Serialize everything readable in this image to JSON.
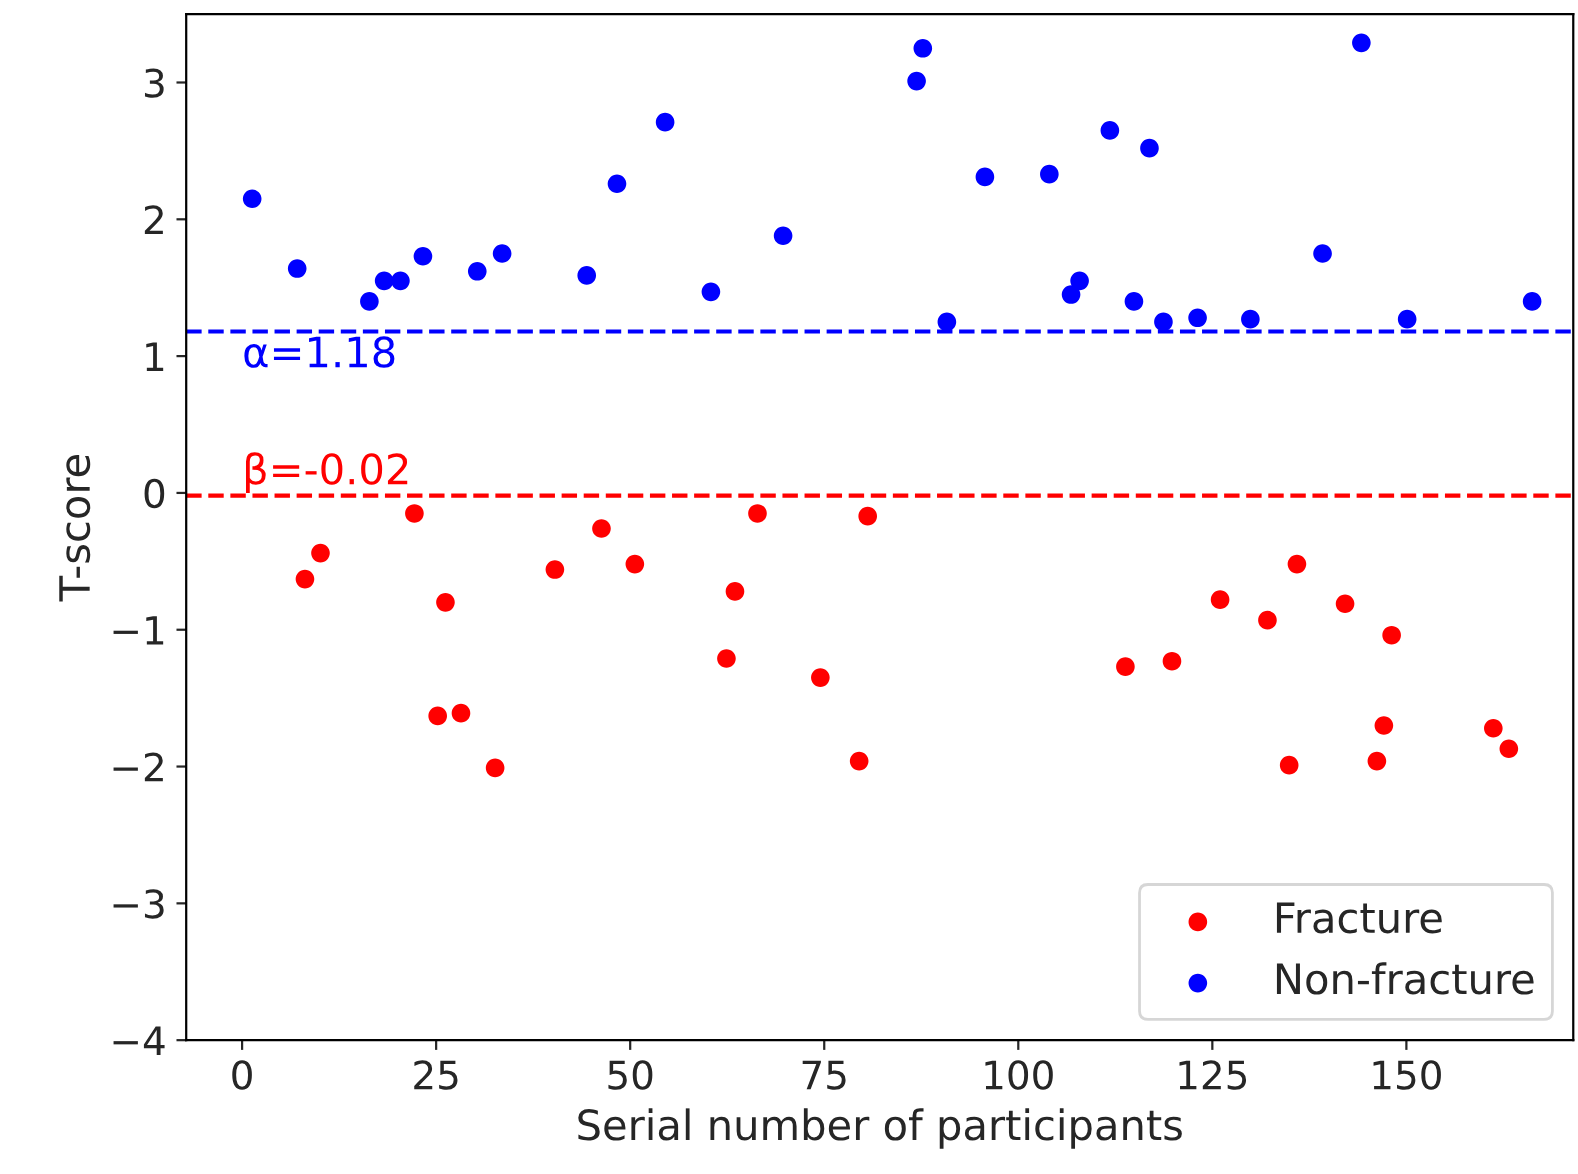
{
  "chart_data": {
    "type": "scatter",
    "xlabel": "Serial number of participants",
    "ylabel": "T-score",
    "xlim": [
      -7.2,
      171.5
    ],
    "ylim": [
      -4,
      3.5
    ],
    "xticks": [
      0,
      25,
      50,
      75,
      100,
      125,
      150
    ],
    "yticks": [
      {
        "value": -4,
        "label": "−4"
      },
      {
        "value": -3,
        "label": "−3"
      },
      {
        "value": -2,
        "label": "−2"
      },
      {
        "value": -1,
        "label": "−1"
      },
      0,
      1,
      2,
      3
    ],
    "series": [
      {
        "name": "Fracture",
        "color": "#ff0000",
        "x": [
          8.1,
          10.1,
          22.2,
          26.2,
          25.2,
          28.2,
          32.6,
          40.3,
          46.3,
          50.6,
          62.4,
          63.5,
          66.4,
          74.5,
          79.5,
          80.6,
          113.8,
          119.8,
          126,
          132.1,
          135.9,
          134.9,
          142.1,
          148.1,
          147.1,
          146.2,
          161.2,
          163.2
        ],
        "values": [
          -0.63,
          -0.44,
          -0.15,
          -0.8,
          -1.63,
          -1.61,
          -2.01,
          -0.56,
          -0.26,
          -0.52,
          -1.21,
          -0.72,
          -0.15,
          -1.35,
          -1.96,
          -0.17,
          -1.27,
          -1.23,
          -0.78,
          -0.93,
          -0.52,
          -1.99,
          -0.81,
          -1.04,
          -1.7,
          -1.96,
          -1.72,
          -1.87
        ]
      },
      {
        "name": "Non-fracture",
        "color": "#0000ff",
        "x": [
          1.3,
          7.1,
          16.4,
          18.3,
          20.4,
          23.3,
          30.3,
          33.5,
          44.4,
          48.3,
          54.5,
          60.4,
          69.7,
          86.9,
          87.7,
          90.8,
          95.7,
          104,
          106.8,
          107.9,
          111.8,
          114.9,
          116.9,
          118.7,
          123.1,
          129.9,
          139.2,
          144.2,
          150.1,
          166.2
        ],
        "values": [
          2.15,
          1.64,
          1.4,
          1.55,
          1.55,
          1.73,
          1.62,
          1.75,
          1.59,
          2.26,
          2.71,
          1.47,
          1.88,
          3.01,
          3.25,
          1.25,
          2.31,
          2.33,
          1.45,
          1.55,
          2.65,
          1.4,
          2.52,
          1.25,
          1.28,
          1.27,
          1.75,
          3.29,
          1.27,
          1.4
        ]
      }
    ],
    "ref_lines": [
      {
        "axis": "y",
        "value": 1.18,
        "label": "α=1.18",
        "color": "#0000ff",
        "line_style": "dashed"
      },
      {
        "axis": "y",
        "value": -0.02,
        "label": "β=-0.02",
        "color": "#ff0000",
        "line_style": "dashed"
      }
    ],
    "marker": "circle",
    "legend": "bottom right",
    "grid": false
  }
}
